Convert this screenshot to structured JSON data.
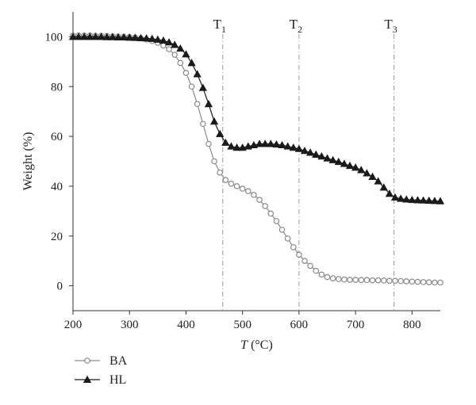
{
  "chart_data": {
    "type": "line",
    "xlabel_italic": "T",
    "xlabel_unit": " (°C)",
    "ylabel": "Weight (%)",
    "xlim": [
      200,
      850
    ],
    "ylim": [
      -10,
      110
    ],
    "xticks": [
      200,
      300,
      400,
      500,
      600,
      700,
      800
    ],
    "yticks": [
      0,
      20,
      40,
      60,
      80,
      100
    ],
    "grid": false,
    "legend_placement": "bottom-left",
    "vlines": [
      {
        "label_main": "T",
        "label_sub": "1",
        "x": 465
      },
      {
        "label_main": "T",
        "label_sub": "2",
        "x": 600
      },
      {
        "label_main": "T",
        "label_sub": "3",
        "x": 768
      }
    ],
    "series": [
      {
        "name": "BA",
        "color": "#8a8a8a",
        "marker": "open-circle",
        "x": [
          200,
          210,
          220,
          230,
          240,
          250,
          260,
          270,
          280,
          290,
          300,
          310,
          320,
          330,
          340,
          350,
          360,
          370,
          380,
          390,
          400,
          410,
          420,
          430,
          440,
          450,
          460,
          470,
          480,
          490,
          500,
          510,
          520,
          530,
          540,
          550,
          560,
          570,
          580,
          590,
          600,
          610,
          620,
          630,
          640,
          650,
          660,
          670,
          680,
          690,
          700,
          710,
          720,
          730,
          740,
          750,
          760,
          770,
          780,
          790,
          800,
          810,
          820,
          830,
          840,
          850
        ],
        "y": [
          100.5,
          100.5,
          100.5,
          100.5,
          100.4,
          100.4,
          100.3,
          100.2,
          100.1,
          100.0,
          99.9,
          99.7,
          99.4,
          98.9,
          98.3,
          97.6,
          96.5,
          95.0,
          92.8,
          89.5,
          85.5,
          80.0,
          73.0,
          65.0,
          57.0,
          50.0,
          45.5,
          42.5,
          41.0,
          40.0,
          39.0,
          38.0,
          36.5,
          34.5,
          32.0,
          29.0,
          26.0,
          22.5,
          19.0,
          15.5,
          12.5,
          10.0,
          8.0,
          6.0,
          4.5,
          3.5,
          3.0,
          2.7,
          2.5,
          2.4,
          2.4,
          2.3,
          2.3,
          2.2,
          2.2,
          2.1,
          2.0,
          2.0,
          1.9,
          1.8,
          1.7,
          1.6,
          1.5,
          1.4,
          1.3,
          1.3
        ]
      },
      {
        "name": "HL",
        "color": "#1a1a1a",
        "marker": "filled-triangle",
        "x": [
          200,
          210,
          220,
          230,
          240,
          250,
          260,
          270,
          280,
          290,
          300,
          310,
          320,
          330,
          340,
          350,
          360,
          370,
          380,
          390,
          400,
          410,
          420,
          430,
          440,
          450,
          460,
          470,
          480,
          490,
          500,
          510,
          520,
          530,
          540,
          550,
          560,
          570,
          580,
          590,
          600,
          610,
          620,
          630,
          640,
          650,
          660,
          670,
          680,
          690,
          700,
          710,
          720,
          730,
          740,
          750,
          760,
          770,
          780,
          790,
          800,
          810,
          820,
          830,
          840,
          850
        ],
        "y": [
          100.0,
          100.0,
          100.0,
          100.0,
          100.0,
          100.0,
          99.9,
          99.9,
          99.8,
          99.8,
          99.7,
          99.6,
          99.5,
          99.4,
          99.2,
          98.9,
          98.5,
          97.8,
          96.8,
          95.3,
          93.0,
          89.5,
          85.0,
          79.5,
          73.0,
          66.0,
          61.0,
          57.5,
          56.0,
          55.5,
          55.5,
          56.0,
          56.5,
          57.0,
          57.0,
          57.0,
          56.8,
          56.5,
          56.0,
          55.5,
          55.0,
          54.2,
          53.5,
          52.7,
          52.0,
          51.2,
          50.5,
          49.8,
          49.0,
          48.2,
          47.5,
          46.5,
          45.2,
          43.8,
          42.0,
          39.5,
          37.0,
          35.5,
          35.0,
          34.7,
          34.5,
          34.4,
          34.3,
          34.2,
          34.1,
          34.0
        ]
      }
    ]
  }
}
